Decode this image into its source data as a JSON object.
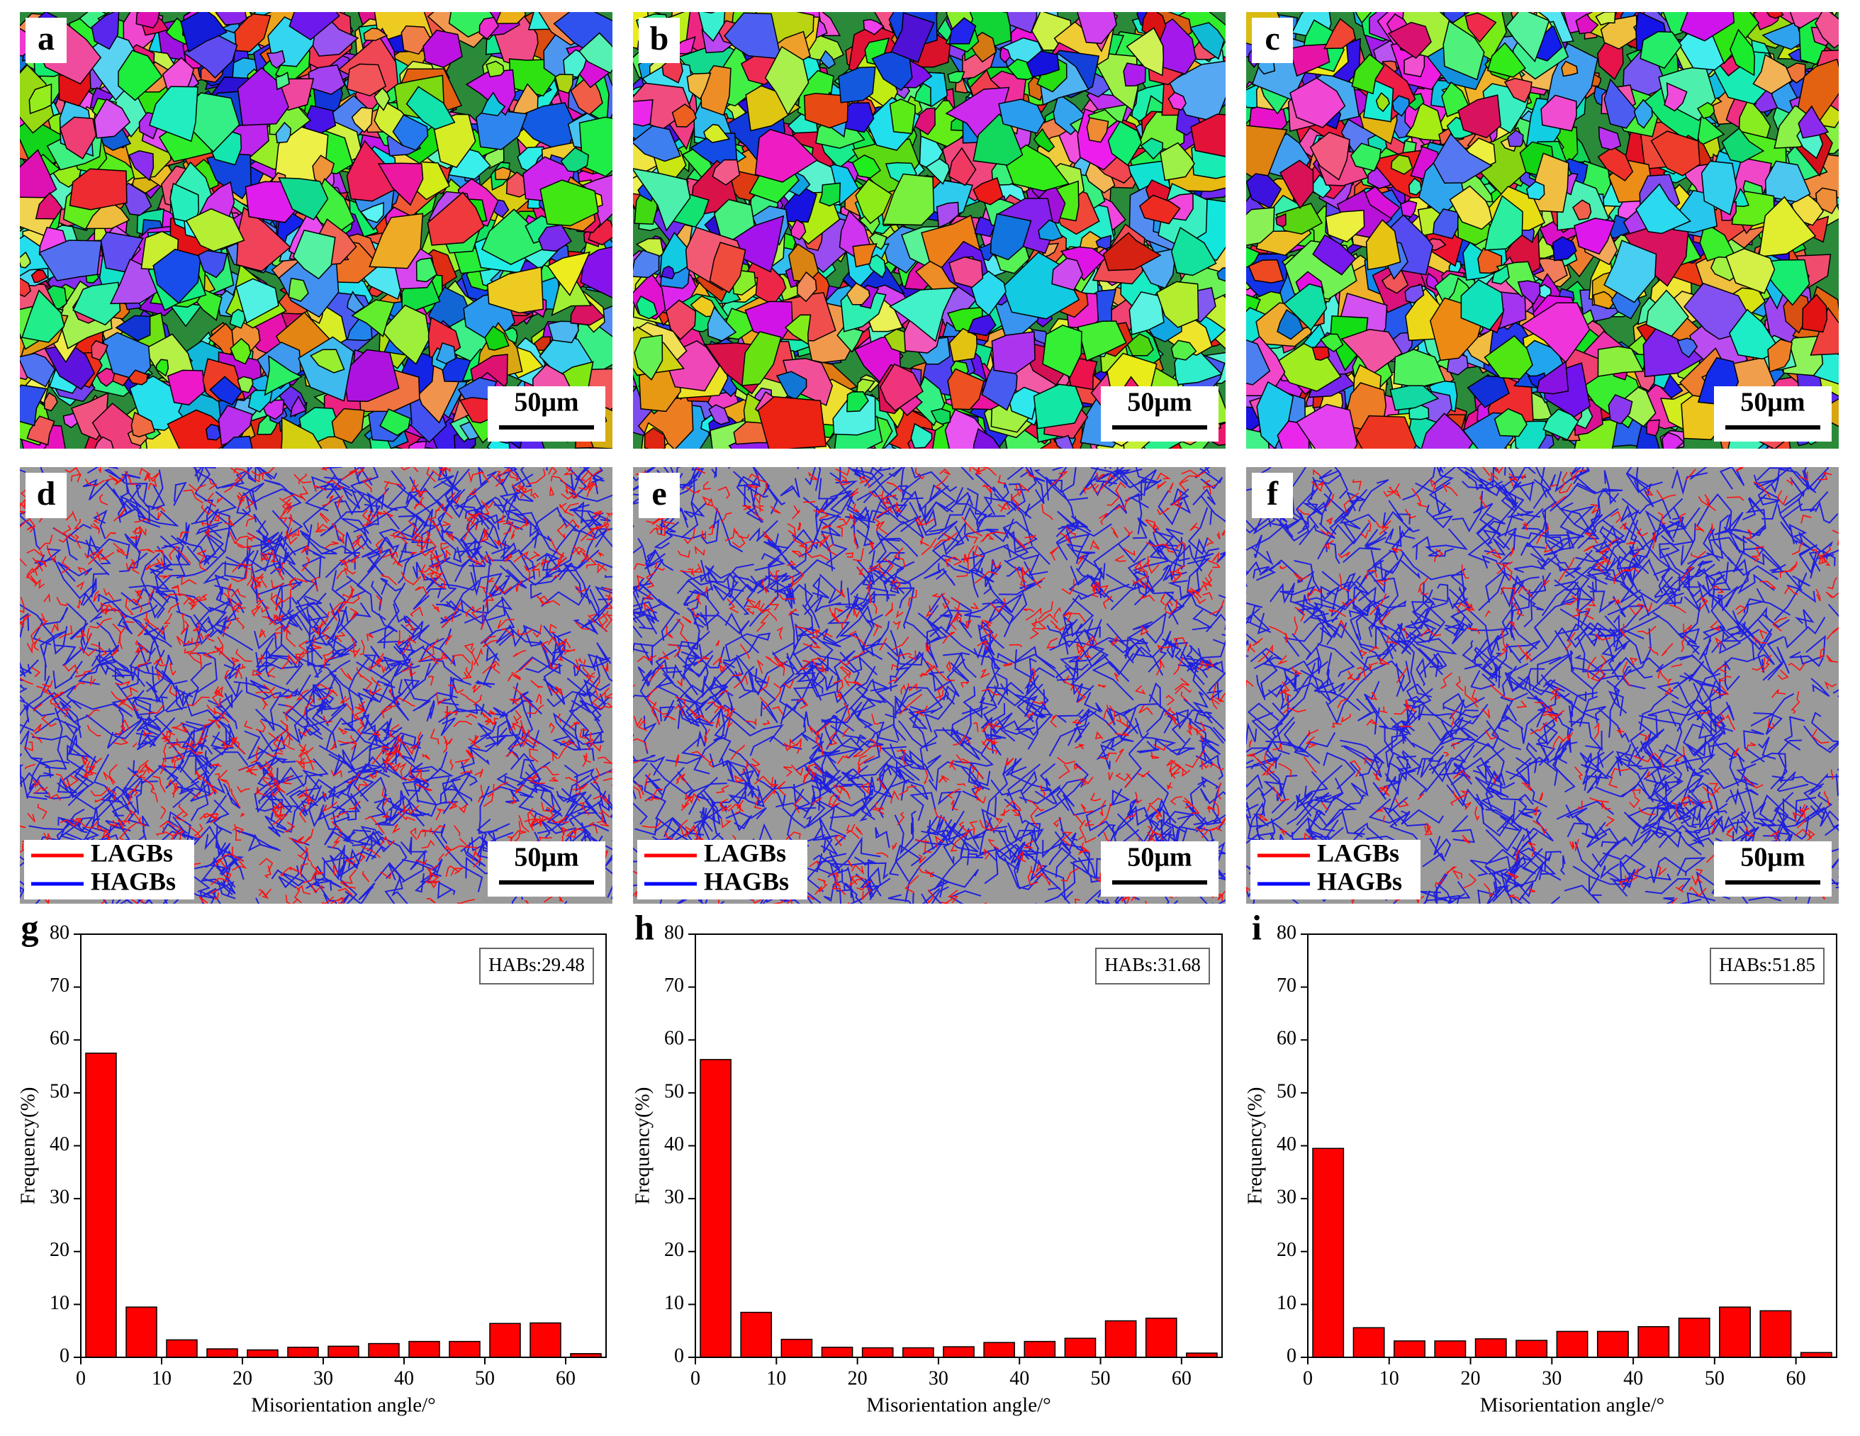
{
  "panels": [
    {
      "label": "a",
      "scale_bar": "50μm"
    },
    {
      "label": "b",
      "scale_bar": "50μm"
    },
    {
      "label": "c",
      "scale_bar": "50μm"
    },
    {
      "label": "d",
      "scale_bar": "50μm"
    },
    {
      "label": "e",
      "scale_bar": "50μm"
    },
    {
      "label": "f",
      "scale_bar": "50μm"
    }
  ],
  "legend": [
    {
      "name": "LAGBs",
      "color": "#ff0000"
    },
    {
      "name": "HAGBs",
      "color": "#0000ff"
    }
  ],
  "chart_data": [
    {
      "type": "histogram",
      "label": "g",
      "annotation": "HABs:29.48",
      "xlabel": "Misorientation angle/°",
      "ylabel": "Frequency(%)",
      "bins": [
        0,
        5,
        10,
        15,
        20,
        25,
        30,
        35,
        40,
        45,
        50,
        55,
        60,
        65
      ],
      "values": [
        57.5,
        9.5,
        3.3,
        1.6,
        1.4,
        1.9,
        2.1,
        2.6,
        3.0,
        3.0,
        6.4,
        6.5,
        0.7
      ],
      "color": "#ff0000",
      "xlim": [
        0,
        65
      ],
      "ylim": [
        0,
        80
      ],
      "xticks": [
        0,
        10,
        20,
        30,
        40,
        50,
        60
      ],
      "yticks": [
        0,
        10,
        20,
        30,
        40,
        50,
        60,
        70,
        80
      ]
    },
    {
      "type": "histogram",
      "label": "h",
      "annotation": "HABs:31.68",
      "xlabel": "Misorientation angle/°",
      "ylabel": "Frequency(%)",
      "bins": [
        0,
        5,
        10,
        15,
        20,
        25,
        30,
        35,
        40,
        45,
        50,
        55,
        60,
        65
      ],
      "values": [
        56.3,
        8.5,
        3.4,
        1.9,
        1.8,
        1.8,
        2.0,
        2.8,
        3.0,
        3.6,
        6.9,
        7.4,
        0.8
      ],
      "color": "#ff0000",
      "xlim": [
        0,
        65
      ],
      "ylim": [
        0,
        80
      ],
      "xticks": [
        0,
        10,
        20,
        30,
        40,
        50,
        60
      ],
      "yticks": [
        0,
        10,
        20,
        30,
        40,
        50,
        60,
        70,
        80
      ]
    },
    {
      "type": "histogram",
      "label": "i",
      "annotation": "HABs:51.85",
      "xlabel": "Misorientation angle/°",
      "ylabel": "Frequency(%)",
      "bins": [
        0,
        5,
        10,
        15,
        20,
        25,
        30,
        35,
        40,
        45,
        50,
        55,
        60,
        65
      ],
      "values": [
        39.5,
        5.6,
        3.1,
        3.1,
        3.5,
        3.2,
        4.9,
        4.9,
        5.8,
        7.4,
        9.5,
        8.8,
        0.9
      ],
      "color": "#ff0000",
      "xlim": [
        0,
        65
      ],
      "ylim": [
        0,
        80
      ],
      "xticks": [
        0,
        10,
        20,
        30,
        40,
        50,
        60
      ],
      "yticks": [
        0,
        10,
        20,
        30,
        40,
        50,
        60,
        70,
        80
      ]
    }
  ]
}
